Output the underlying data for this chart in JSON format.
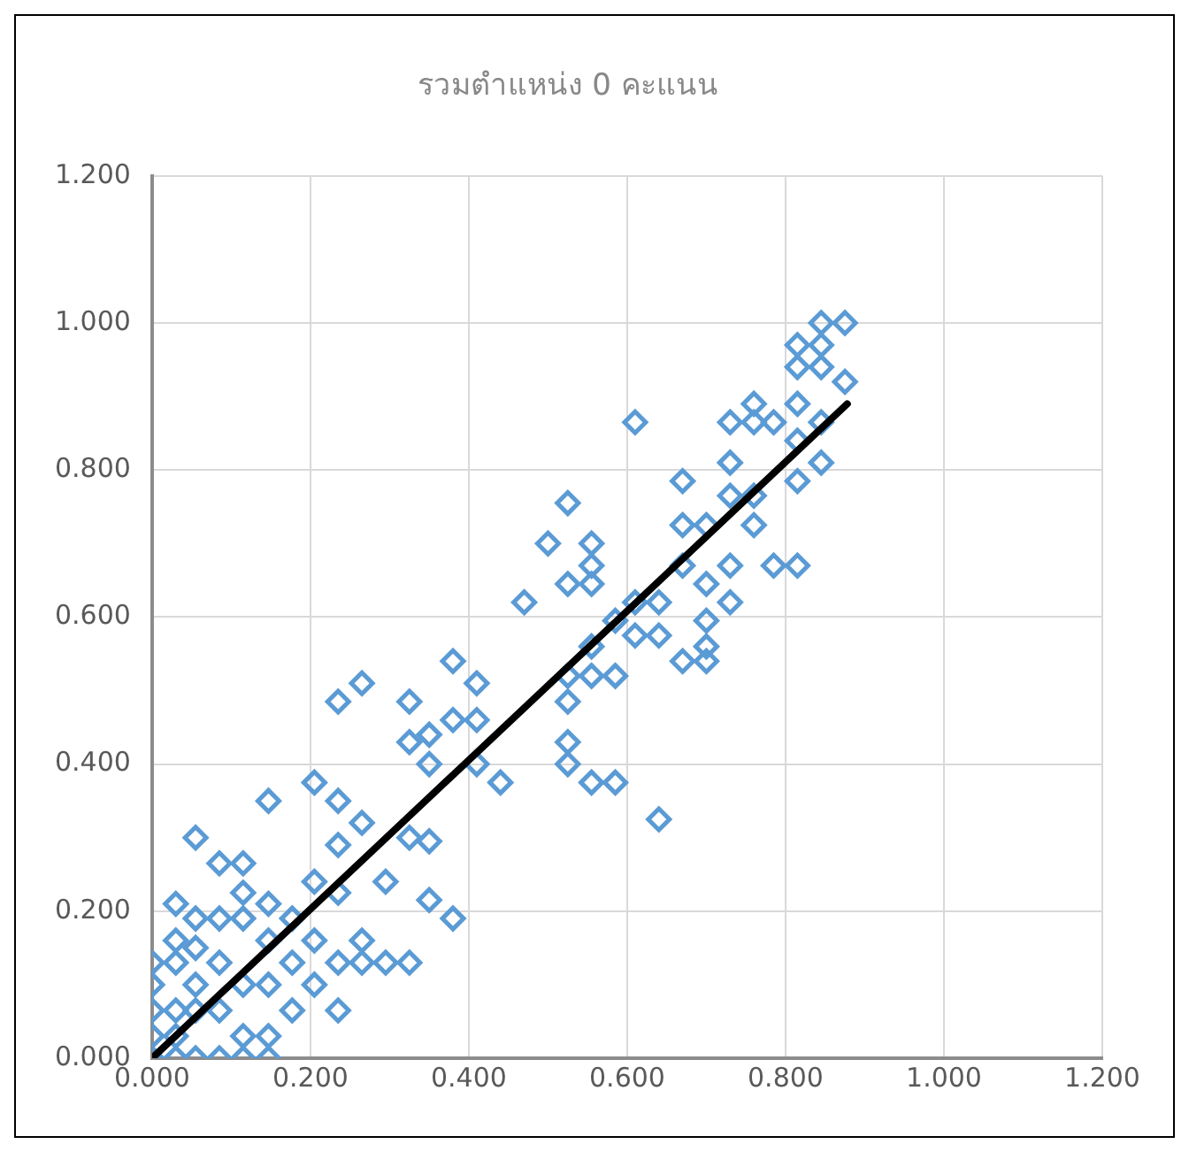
{
  "chart_data": {
    "type": "scatter",
    "title": "รวมตำแหน่ง 0 คะแนน",
    "xlim": [
      0,
      1.2
    ],
    "ylim": [
      0,
      1.2
    ],
    "xticks": [
      {
        "value": 0,
        "label": "0.000"
      },
      {
        "value": 0.2,
        "label": "0.200"
      },
      {
        "value": 0.4,
        "label": "0.400"
      },
      {
        "value": 0.6,
        "label": "0.600"
      },
      {
        "value": 0.8,
        "label": "0.800"
      },
      {
        "value": 1,
        "label": "1.000"
      },
      {
        "value": 1.2,
        "label": "1.200"
      }
    ],
    "yticks": [
      {
        "value": 0,
        "label": "0.000"
      },
      {
        "value": 0.2,
        "label": "0.200"
      },
      {
        "value": 0.4,
        "label": "0.400"
      },
      {
        "value": 0.6,
        "label": "0.600"
      },
      {
        "value": 0.8,
        "label": "0.800"
      },
      {
        "value": 1,
        "label": "1.000"
      },
      {
        "value": 1.2,
        "label": "1.200"
      }
    ],
    "grid": true,
    "legend": false,
    "series": [
      {
        "type": "scatter",
        "marker": "diamond",
        "color": "#5b9bd5",
        "x": [
          0,
          0,
          0,
          0,
          0,
          0.03,
          0.03,
          0.03,
          0.03,
          0.03,
          0.03,
          0.055,
          0.055,
          0.055,
          0.055,
          0.055,
          0.055,
          0.085,
          0.085,
          0.085,
          0.085,
          0.085,
          0.115,
          0.115,
          0.115,
          0.115,
          0.115,
          0.115,
          0.147,
          0.147,
          0.147,
          0.147,
          0.147,
          0.147,
          0.177,
          0.177,
          0.177,
          0.205,
          0.205,
          0.205,
          0.205,
          0.235,
          0.235,
          0.235,
          0.235,
          0.235,
          0.235,
          0.265,
          0.265,
          0.265,
          0.265,
          0.295,
          0.295,
          0.325,
          0.325,
          0.325,
          0.325,
          0.35,
          0.35,
          0.35,
          0.35,
          0.38,
          0.38,
          0.38,
          0.41,
          0.41,
          0.41,
          0.44,
          0.47,
          0.5,
          0.525,
          0.525,
          0.525,
          0.525,
          0.525,
          0.525,
          0.555,
          0.555,
          0.555,
          0.555,
          0.555,
          0.555,
          0.585,
          0.585,
          0.585,
          0.61,
          0.61,
          0.61,
          0.64,
          0.64,
          0.64,
          0.67,
          0.67,
          0.67,
          0.67,
          0.7,
          0.7,
          0.7,
          0.7,
          0.7,
          0.73,
          0.73,
          0.73,
          0.73,
          0.73,
          0.76,
          0.76,
          0.76,
          0.76,
          0.785,
          0.785,
          0.815,
          0.815,
          0.815,
          0.815,
          0.815,
          0.815,
          0.845,
          0.845,
          0.845,
          0.845,
          0.845,
          0.875,
          0.875
        ],
        "values": [
          0.13,
          0.1,
          0.065,
          0.03,
          0,
          0.21,
          0.16,
          0.13,
          0.065,
          0.03,
          0,
          0.3,
          0.19,
          0.15,
          0.1,
          0.065,
          0,
          0.265,
          0.19,
          0.13,
          0.065,
          0,
          0.265,
          0.225,
          0.19,
          0.1,
          0.03,
          0,
          0.35,
          0.21,
          0.16,
          0.1,
          0.03,
          0,
          0.19,
          0.13,
          0.065,
          0.375,
          0.24,
          0.16,
          0.1,
          0.485,
          0.35,
          0.29,
          0.225,
          0.13,
          0.065,
          0.51,
          0.32,
          0.16,
          0.13,
          0.24,
          0.13,
          0.485,
          0.43,
          0.3,
          0.13,
          0.4,
          0.44,
          0.295,
          0.215,
          0.54,
          0.46,
          0.19,
          0.51,
          0.46,
          0.4,
          0.375,
          0.62,
          0.7,
          0.755,
          0.645,
          0.485,
          0.43,
          0.4,
          0.52,
          0.7,
          0.67,
          0.645,
          0.56,
          0.52,
          0.375,
          0.595,
          0.52,
          0.375,
          0.865,
          0.62,
          0.575,
          0.62,
          0.575,
          0.325,
          0.785,
          0.725,
          0.67,
          0.54,
          0.725,
          0.645,
          0.595,
          0.56,
          0.54,
          0.865,
          0.81,
          0.765,
          0.67,
          0.62,
          0.89,
          0.865,
          0.725,
          0.765,
          0.865,
          0.67,
          0.97,
          0.94,
          0.89,
          0.84,
          0.785,
          0.67,
          1.0,
          0.97,
          0.94,
          0.865,
          0.81,
          1.0,
          0.92
        ]
      },
      {
        "type": "line",
        "marker": "none",
        "line_style": "solid",
        "color": "#000000",
        "x": [
          0,
          0.878
        ],
        "values": [
          0,
          0.89
        ]
      }
    ]
  }
}
